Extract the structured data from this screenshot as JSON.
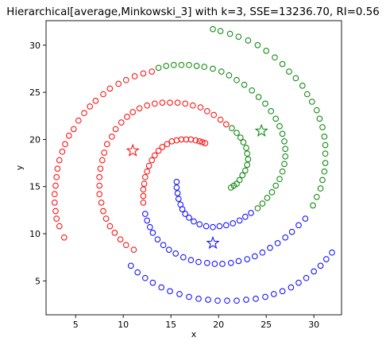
{
  "chart_data": {
    "type": "scatter",
    "title": "Hierarchical[average,Minkowski_3] with k=3, SSE=13236.70, RI=0.56",
    "xlabel": "x",
    "ylabel": "y",
    "xlim": [
      1.9,
      32.9
    ],
    "ylim": [
      1.4,
      32.6
    ],
    "xticks": [
      5,
      10,
      15,
      20,
      25,
      30
    ],
    "yticks": [
      5,
      10,
      15,
      20,
      25,
      30
    ],
    "grid": false,
    "legend": "none",
    "marker": "hollow-circle",
    "centroid_marker": "hollow-star",
    "series": [
      {
        "color": "#ff0000",
        "points": [
          [
            3.8,
            9.6
          ],
          [
            3.3,
            10.8
          ],
          [
            3.0,
            11.6
          ],
          [
            2.9,
            12.4
          ],
          [
            2.8,
            13.3
          ],
          [
            2.8,
            14.2
          ],
          [
            2.9,
            15.1
          ],
          [
            3.0,
            16.0
          ],
          [
            3.1,
            16.9
          ],
          [
            3.3,
            17.8
          ],
          [
            3.6,
            18.7
          ],
          [
            3.9,
            19.5
          ],
          [
            4.3,
            20.4
          ],
          [
            4.8,
            21.1
          ],
          [
            5.3,
            22.0
          ],
          [
            5.9,
            22.8
          ],
          [
            6.5,
            23.5
          ],
          [
            7.1,
            24.1
          ],
          [
            7.9,
            24.8
          ],
          [
            8.6,
            25.4
          ],
          [
            9.5,
            25.9
          ],
          [
            10.3,
            26.3
          ],
          [
            11.2,
            26.7
          ],
          [
            12.1,
            27.0
          ],
          [
            13.0,
            27.2
          ],
          [
            11.1,
            8.3
          ],
          [
            10.3,
            8.8
          ],
          [
            9.7,
            9.4
          ],
          [
            9.1,
            10.1
          ],
          [
            8.6,
            10.8
          ],
          [
            8.2,
            11.6
          ],
          [
            7.9,
            12.4
          ],
          [
            7.7,
            13.3
          ],
          [
            7.5,
            14.2
          ],
          [
            7.5,
            15.1
          ],
          [
            7.5,
            16.0
          ],
          [
            7.6,
            16.9
          ],
          [
            7.8,
            17.8
          ],
          [
            8.0,
            18.6
          ],
          [
            8.3,
            19.5
          ],
          [
            8.8,
            20.3
          ],
          [
            9.2,
            21.1
          ],
          [
            9.8,
            21.8
          ],
          [
            10.4,
            22.4
          ],
          [
            11.0,
            22.9
          ],
          [
            11.7,
            23.3
          ],
          [
            12.5,
            23.6
          ],
          [
            13.3,
            23.8
          ],
          [
            14.1,
            23.9
          ],
          [
            14.9,
            23.9
          ],
          [
            15.7,
            23.9
          ],
          [
            16.5,
            23.8
          ],
          [
            17.3,
            23.6
          ],
          [
            18.1,
            23.4
          ],
          [
            18.8,
            23.0
          ],
          [
            19.5,
            22.6
          ],
          [
            20.2,
            22.1
          ],
          [
            20.8,
            21.6
          ],
          [
            12.1,
            13.3
          ],
          [
            12.1,
            14.0
          ],
          [
            12.1,
            14.7
          ],
          [
            12.2,
            15.3
          ],
          [
            12.3,
            16.0
          ],
          [
            12.5,
            16.6
          ],
          [
            12.7,
            17.2
          ],
          [
            13.0,
            17.8
          ],
          [
            13.3,
            18.3
          ],
          [
            13.7,
            18.8
          ],
          [
            14.1,
            19.2
          ],
          [
            14.6,
            19.5
          ],
          [
            15.1,
            19.8
          ],
          [
            15.6,
            19.9
          ],
          [
            16.1,
            20.0
          ],
          [
            16.6,
            20.0
          ],
          [
            17.1,
            20.0
          ],
          [
            17.6,
            19.9
          ],
          [
            18.0,
            19.8
          ],
          [
            18.3,
            19.7
          ],
          [
            18.6,
            19.6
          ]
        ],
        "centroid": [
          11.0,
          18.8
        ]
      },
      {
        "color": "#008000",
        "points": [
          [
            19.4,
            31.7
          ],
          [
            20.2,
            31.5
          ],
          [
            21.2,
            31.2
          ],
          [
            22.1,
            30.9
          ],
          [
            23.1,
            30.5
          ],
          [
            24.1,
            30.0
          ],
          [
            25.0,
            29.4
          ],
          [
            25.9,
            28.7
          ],
          [
            26.7,
            28.0
          ],
          [
            27.4,
            27.2
          ],
          [
            28.1,
            26.5
          ],
          [
            28.8,
            25.7
          ],
          [
            29.3,
            24.8
          ],
          [
            29.8,
            24.0
          ],
          [
            30.3,
            23.1
          ],
          [
            30.6,
            22.2
          ],
          [
            30.9,
            21.3
          ],
          [
            31.1,
            20.3
          ],
          [
            31.2,
            19.4
          ],
          [
            31.2,
            18.5
          ],
          [
            31.2,
            17.5
          ],
          [
            31.1,
            16.6
          ],
          [
            30.9,
            15.7
          ],
          [
            30.7,
            14.8
          ],
          [
            30.3,
            13.9
          ],
          [
            29.9,
            13.0
          ],
          [
            13.7,
            27.6
          ],
          [
            14.5,
            27.8
          ],
          [
            15.3,
            27.9
          ],
          [
            16.1,
            27.9
          ],
          [
            16.9,
            27.9
          ],
          [
            17.7,
            27.8
          ],
          [
            18.5,
            27.7
          ],
          [
            19.4,
            27.5
          ],
          [
            20.3,
            27.2
          ],
          [
            21.1,
            26.8
          ],
          [
            21.9,
            26.3
          ],
          [
            22.7,
            25.8
          ],
          [
            23.5,
            25.2
          ],
          [
            24.2,
            24.5
          ],
          [
            24.9,
            23.8
          ],
          [
            25.5,
            23.0
          ],
          [
            26.0,
            22.2
          ],
          [
            26.4,
            21.4
          ],
          [
            26.7,
            20.6
          ],
          [
            26.9,
            19.8
          ],
          [
            27.0,
            19.0
          ],
          [
            27.0,
            18.2
          ],
          [
            26.9,
            17.4
          ],
          [
            26.7,
            16.6
          ],
          [
            26.4,
            15.8
          ],
          [
            26.0,
            15.1
          ],
          [
            25.6,
            14.4
          ],
          [
            25.1,
            13.8
          ],
          [
            24.6,
            13.2
          ],
          [
            24.1,
            12.7
          ],
          [
            21.4,
            21.2
          ],
          [
            21.9,
            20.7
          ],
          [
            22.3,
            20.2
          ],
          [
            22.6,
            19.7
          ],
          [
            22.9,
            19.1
          ],
          [
            23.0,
            18.5
          ],
          [
            23.1,
            17.9
          ],
          [
            23.0,
            17.3
          ],
          [
            22.8,
            16.7
          ],
          [
            22.5,
            16.2
          ],
          [
            22.2,
            15.7
          ],
          [
            21.9,
            15.3
          ],
          [
            21.6,
            15.1
          ],
          [
            21.3,
            14.9
          ]
        ],
        "centroid": [
          24.5,
          20.9
        ]
      },
      {
        "color": "#0000ff",
        "points": [
          [
            31.9,
            8.0
          ],
          [
            31.3,
            7.3
          ],
          [
            30.7,
            6.6
          ],
          [
            30.0,
            6.0
          ],
          [
            29.2,
            5.3
          ],
          [
            28.4,
            4.8
          ],
          [
            27.6,
            4.3
          ],
          [
            26.7,
            3.9
          ],
          [
            25.8,
            3.6
          ],
          [
            24.9,
            3.3
          ],
          [
            23.9,
            3.1
          ],
          [
            22.9,
            3.0
          ],
          [
            21.9,
            2.9
          ],
          [
            20.9,
            2.9
          ],
          [
            19.9,
            2.9
          ],
          [
            18.9,
            3.0
          ],
          [
            17.9,
            3.1
          ],
          [
            16.9,
            3.3
          ],
          [
            15.9,
            3.6
          ],
          [
            14.9,
            3.9
          ],
          [
            14.0,
            4.3
          ],
          [
            13.1,
            4.8
          ],
          [
            12.3,
            5.3
          ],
          [
            11.5,
            5.9
          ],
          [
            10.8,
            6.6
          ],
          [
            29.1,
            11.6
          ],
          [
            28.4,
            10.9
          ],
          [
            27.7,
            10.2
          ],
          [
            27.0,
            9.6
          ],
          [
            26.2,
            9.0
          ],
          [
            25.4,
            8.5
          ],
          [
            24.6,
            8.0
          ],
          [
            23.8,
            7.6
          ],
          [
            23.0,
            7.3
          ],
          [
            22.1,
            7.1
          ],
          [
            21.3,
            6.9
          ],
          [
            20.4,
            6.8
          ],
          [
            19.6,
            6.8
          ],
          [
            18.8,
            6.9
          ],
          [
            17.9,
            7.0
          ],
          [
            17.1,
            7.2
          ],
          [
            16.3,
            7.5
          ],
          [
            15.5,
            7.9
          ],
          [
            14.8,
            8.3
          ],
          [
            14.2,
            8.8
          ],
          [
            13.6,
            9.4
          ],
          [
            13.1,
            10.1
          ],
          [
            12.8,
            10.7
          ],
          [
            12.5,
            11.4
          ],
          [
            12.3,
            12.1
          ],
          [
            23.4,
            12.2
          ],
          [
            22.8,
            11.8
          ],
          [
            22.2,
            11.4
          ],
          [
            21.5,
            11.1
          ],
          [
            20.8,
            10.9
          ],
          [
            20.1,
            10.8
          ],
          [
            19.4,
            10.7
          ],
          [
            18.7,
            10.8
          ],
          [
            18.0,
            11.0
          ],
          [
            17.4,
            11.3
          ],
          [
            16.9,
            11.7
          ],
          [
            16.5,
            12.1
          ],
          [
            16.2,
            12.6
          ],
          [
            16.0,
            13.1
          ],
          [
            15.8,
            13.7
          ],
          [
            15.7,
            14.3
          ],
          [
            15.6,
            14.9
          ],
          [
            15.6,
            15.5
          ]
        ],
        "centroid": [
          19.4,
          9.0
        ]
      }
    ]
  }
}
